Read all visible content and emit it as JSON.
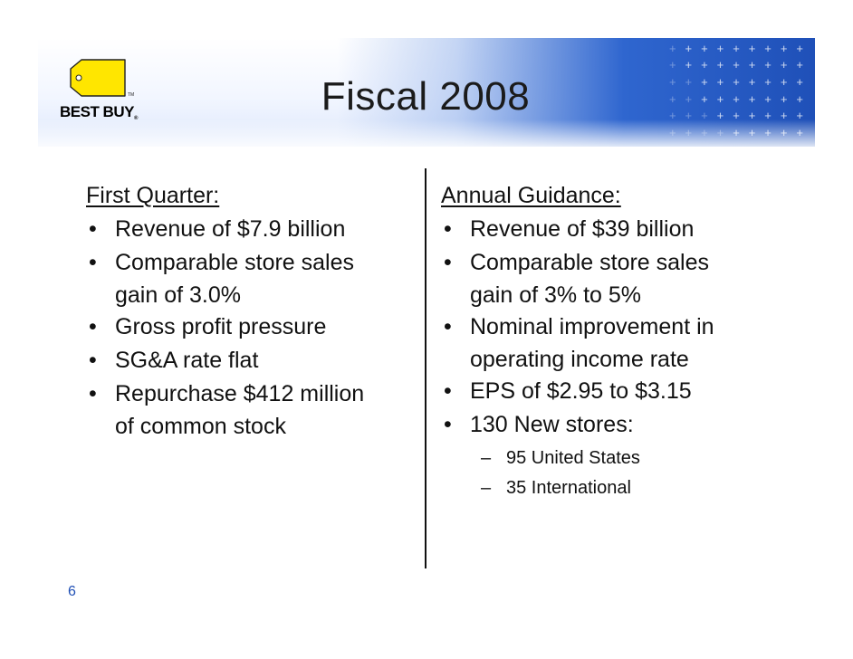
{
  "slide": {
    "title": "Fiscal 2008",
    "page_number": "6"
  },
  "logo": {
    "brand": "BEST BUY",
    "registered_mark": "®",
    "tag_color": "#ffe600"
  },
  "left_column": {
    "heading": "First Quarter:",
    "bullets": [
      {
        "line1": "Revenue of $7.9 billion",
        "line2": ""
      },
      {
        "line1": "Comparable store sales",
        "line2": "gain of 3.0%"
      },
      {
        "line1": "Gross profit pressure",
        "line2": ""
      },
      {
        "line1": "SG&A rate flat",
        "line2": ""
      },
      {
        "line1": "Repurchase $412 million",
        "line2": "of common stock"
      }
    ]
  },
  "right_column": {
    "heading": "Annual Guidance:",
    "bullets": [
      {
        "line1": "Revenue of $39 billion",
        "line2": ""
      },
      {
        "line1": "Comparable store sales",
        "line2": "gain of 3% to 5%"
      },
      {
        "line1": "Nominal improvement in",
        "line2": "operating income rate"
      },
      {
        "line1": "EPS of $2.95 to $3.15",
        "line2": ""
      },
      {
        "line1": "130 New stores:",
        "line2": ""
      }
    ],
    "sub_items": [
      "95 United States",
      "35 International"
    ]
  },
  "symbols": {
    "bullet": "•",
    "dash": "–"
  },
  "colors": {
    "banner_blue": "#2f66cf",
    "page_number": "#1f4fb5",
    "text": "#111111"
  }
}
